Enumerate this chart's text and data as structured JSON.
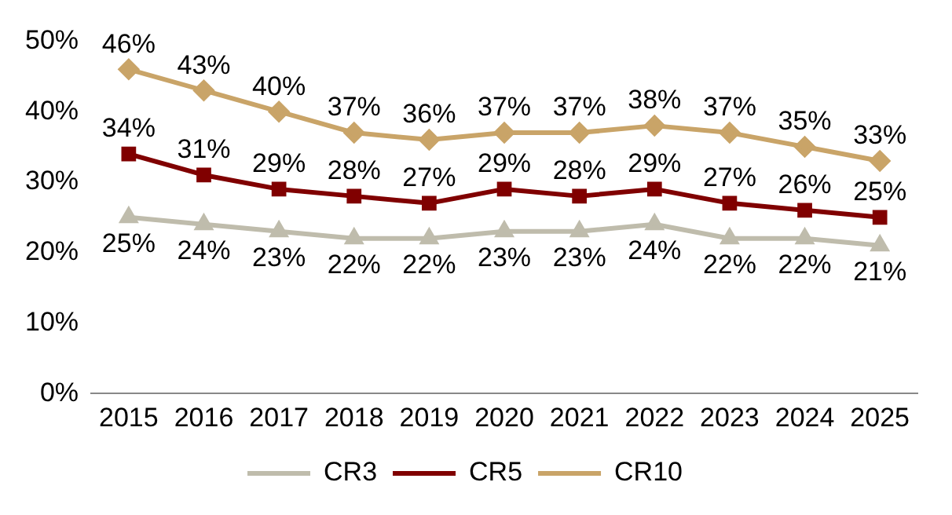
{
  "chart_data": {
    "type": "line",
    "categories": [
      "2015",
      "2016",
      "2017",
      "2018",
      "2019",
      "2020",
      "2021",
      "2022",
      "2023",
      "2024",
      "2025"
    ],
    "series": [
      {
        "name": "CR3",
        "color": "#bfbcac",
        "marker": "triangle",
        "values": [
          25,
          24,
          23,
          22,
          22,
          23,
          23,
          24,
          22,
          22,
          21
        ],
        "value_labels": [
          "25%",
          "24%",
          "23%",
          "22%",
          "22%",
          "23%",
          "23%",
          "24%",
          "22%",
          "22%",
          "21%"
        ]
      },
      {
        "name": "CR5",
        "color": "#800000",
        "marker": "square",
        "values": [
          34,
          31,
          29,
          28,
          27,
          29,
          28,
          29,
          27,
          26,
          25
        ],
        "value_labels": [
          "34%",
          "31%",
          "29%",
          "28%",
          "27%",
          "29%",
          "28%",
          "29%",
          "27%",
          "26%",
          "25%"
        ]
      },
      {
        "name": "CR10",
        "color": "#c9a468",
        "marker": "diamond",
        "values": [
          46,
          43,
          40,
          37,
          36,
          37,
          37,
          38,
          37,
          35,
          33
        ],
        "value_labels": [
          "46%",
          "43%",
          "40%",
          "37%",
          "36%",
          "37%",
          "37%",
          "38%",
          "37%",
          "35%",
          "33%"
        ]
      }
    ],
    "ylim": [
      0,
      50
    ],
    "yticks": [
      {
        "value": 0,
        "label": "0%"
      },
      {
        "value": 10,
        "label": "10%"
      },
      {
        "value": 20,
        "label": "20%"
      },
      {
        "value": 30,
        "label": "30%"
      },
      {
        "value": 40,
        "label": "40%"
      },
      {
        "value": 50,
        "label": "50%"
      }
    ],
    "grid": false,
    "legend": "bottom"
  }
}
